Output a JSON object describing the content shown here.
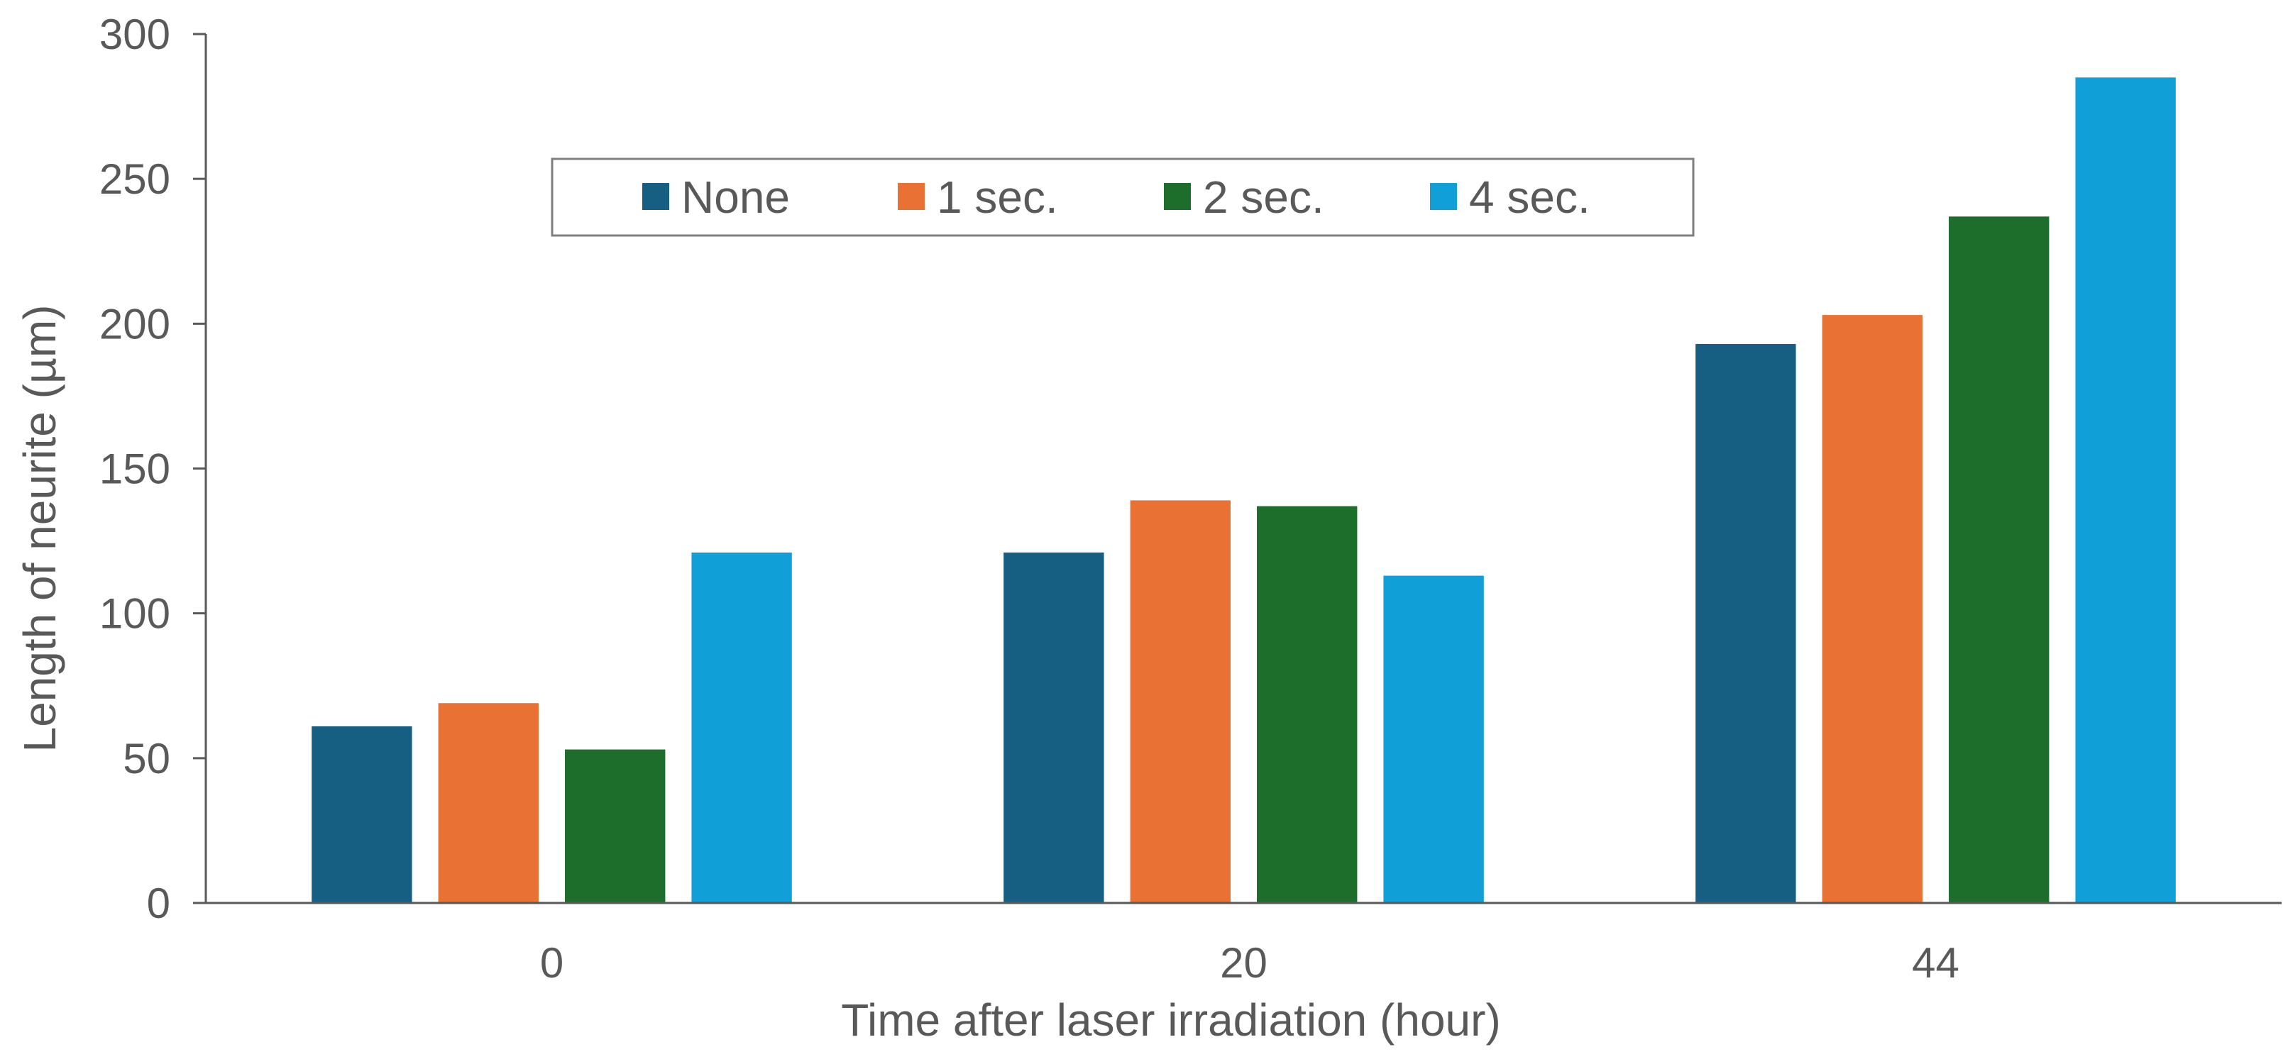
{
  "chart_data": {
    "type": "bar",
    "categories": [
      "0",
      "20",
      "44"
    ],
    "series": [
      {
        "name": "None",
        "color": "#175E83",
        "values": [
          61,
          121,
          193
        ]
      },
      {
        "name": "1 sec.",
        "color": "#E87133",
        "values": [
          69,
          139,
          203
        ]
      },
      {
        "name": "2 sec.",
        "color": "#1D6E2B",
        "values": [
          53,
          137,
          237
        ]
      },
      {
        "name": "4 sec.",
        "color": "#119FD7",
        "values": [
          121,
          113,
          285
        ]
      }
    ],
    "xlabel": "Time after  laser irradiation (hour)",
    "ylabel": "Length of neurite (µm)",
    "ylim": [
      0,
      300
    ],
    "yticks": [
      "0",
      "50",
      "100",
      "150",
      "200",
      "250",
      "300"
    ],
    "grid": false,
    "legend_position": "top-center"
  }
}
